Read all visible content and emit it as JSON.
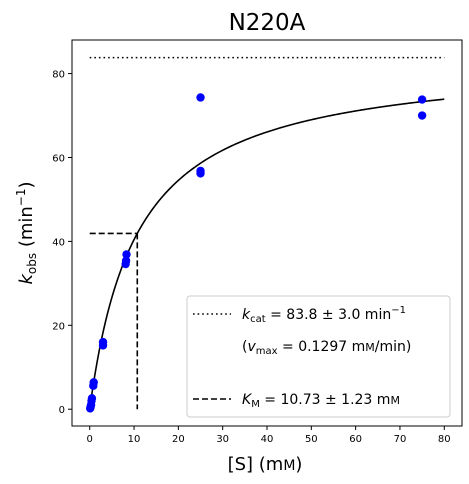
{
  "chart_data": {
    "type": "scatter",
    "title": "N220A",
    "xlabel": "[S] (mM)",
    "ylabel": "k_obs (min⁻¹)",
    "xlim": [
      -4,
      84
    ],
    "ylim": [
      -4,
      88
    ],
    "x_ticks": [
      0,
      10,
      20,
      30,
      40,
      50,
      60,
      70,
      80
    ],
    "y_ticks": [
      0,
      20,
      40,
      60,
      80
    ],
    "grid": false,
    "legend_position": "lower-right",
    "series": [
      {
        "kind": "points",
        "color": "#0000ff",
        "points": [
          {
            "x": 0.1,
            "y": 0.2
          },
          {
            "x": 0.2,
            "y": 0.6
          },
          {
            "x": 0.3,
            "y": 1.0
          },
          {
            "x": 0.4,
            "y": 2.0
          },
          {
            "x": 0.5,
            "y": 2.6
          },
          {
            "x": 0.8,
            "y": 5.6
          },
          {
            "x": 0.9,
            "y": 6.4
          },
          {
            "x": 3.0,
            "y": 15.2
          },
          {
            "x": 3.0,
            "y": 16.0
          },
          {
            "x": 8.1,
            "y": 34.6
          },
          {
            "x": 8.2,
            "y": 35.4
          },
          {
            "x": 8.3,
            "y": 36.9
          },
          {
            "x": 25.0,
            "y": 74.3
          },
          {
            "x": 25.0,
            "y": 56.2
          },
          {
            "x": 25.0,
            "y": 56.8
          },
          {
            "x": 75.0,
            "y": 73.8
          },
          {
            "x": 75.0,
            "y": 70.0
          }
        ]
      },
      {
        "kind": "fit",
        "color": "#000000",
        "kcat": 83.8,
        "km": 10.73,
        "x_range": [
          0,
          80
        ]
      },
      {
        "kind": "kcat-line",
        "style": "dotted",
        "y": 83.8,
        "x_range": [
          0,
          80
        ]
      },
      {
        "kind": "km-line",
        "style": "dashed",
        "x": 10.73,
        "half_y": 41.9
      }
    ],
    "legend": {
      "kcat_label": "k_cat = 83.8 ± 3.0 min⁻¹",
      "vmax_label": "(v_max = 0.1297 mM/min)",
      "km_label": "K_M = 10.73 ± 1.23 mM"
    }
  }
}
